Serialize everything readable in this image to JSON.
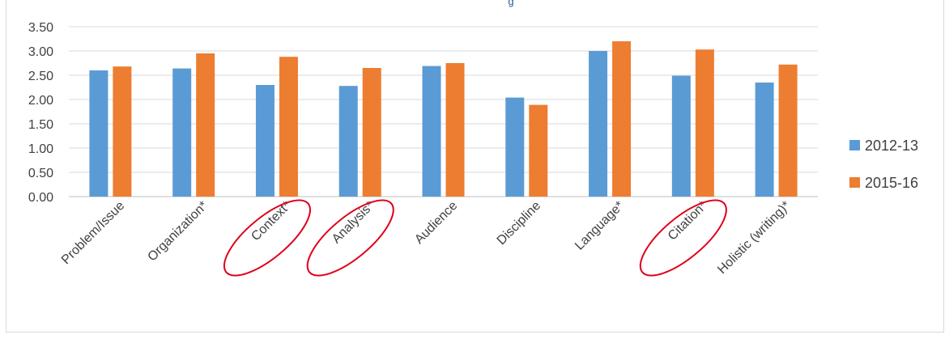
{
  "chart_data": {
    "type": "bar",
    "categories": [
      "Problem/Issue",
      "Organization*",
      "Context*",
      "Analysis*",
      "Audience",
      "Discipline",
      "Language*",
      "Citation*",
      "Holistic (writing)*"
    ],
    "series": [
      {
        "name": "2012-13",
        "color": "#5b9bd5",
        "values": [
          2.6,
          2.64,
          2.3,
          2.28,
          2.69,
          2.04,
          3.0,
          2.49,
          2.35
        ]
      },
      {
        "name": "2015-16",
        "color": "#ed7d31",
        "values": [
          2.68,
          2.95,
          2.88,
          2.65,
          2.75,
          1.89,
          3.2,
          3.03,
          2.72
        ]
      }
    ],
    "y_ticks": [
      "0.00",
      "0.50",
      "1.00",
      "1.50",
      "2.00",
      "2.50",
      "3.00",
      "3.50"
    ],
    "ylim": [
      0,
      3.5
    ],
    "grid": true,
    "legend_position": "right",
    "title_fragment": "g",
    "highlighted_categories": [
      "Context*",
      "Analysis*",
      "Citation*"
    ],
    "highlight_color": "#e0001b"
  }
}
